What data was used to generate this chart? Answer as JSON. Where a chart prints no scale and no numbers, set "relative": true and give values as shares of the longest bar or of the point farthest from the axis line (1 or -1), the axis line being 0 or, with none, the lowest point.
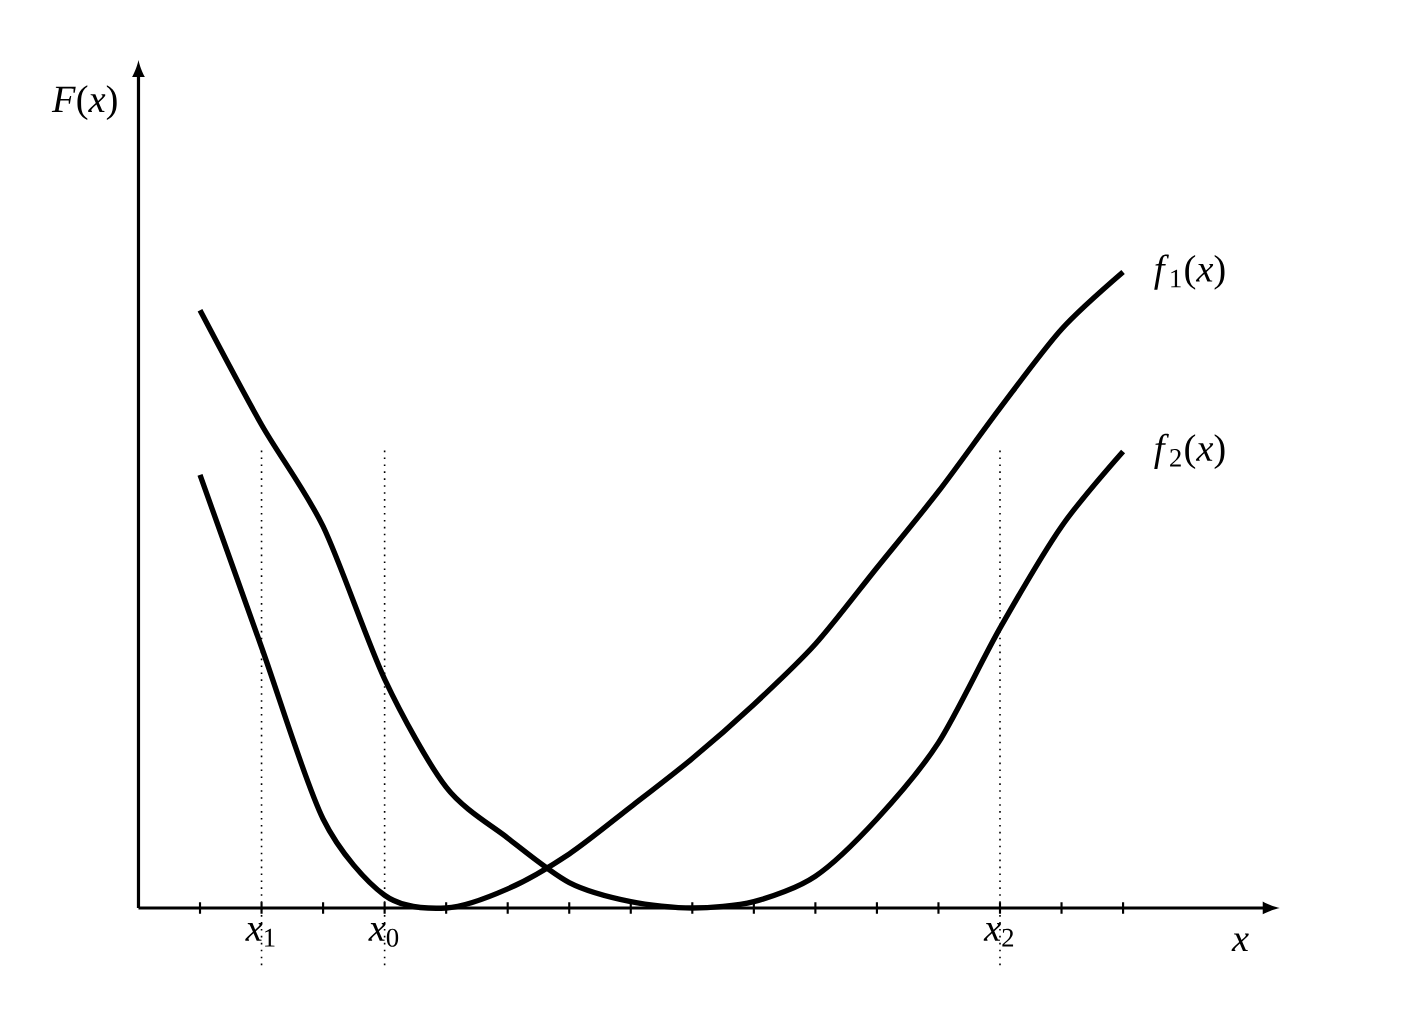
{
  "chart_data": {
    "type": "line",
    "relative": true,
    "ylabel": "*F*(*x*)",
    "xlabel": "x",
    "categories": [
      null,
      "*x*$_{1}$",
      null,
      "*x*$_{0}$",
      null,
      null,
      null,
      null,
      null,
      null,
      null,
      null,
      null,
      "*x*$_{2}$",
      null,
      null
    ],
    "grid": false,
    "marker": "none",
    "line_style": "solid",
    "ref_lines": [
      {
        "axis": "x",
        "value": "*x*$_{1}$",
        "color": "#000000",
        "line_style": "dotted"
      },
      {
        "axis": "x",
        "value": "*x*$_{0}$",
        "color": "#000000",
        "line_style": "dotted"
      },
      {
        "axis": "x",
        "value": "*x*$_{2}$",
        "color": "#000000",
        "line_style": "dotted"
      }
    ],
    "series": [
      {
        "name": "*f*$_{1}$(*x*)",
        "color": "#000000",
        "values": [
          0.681,
          0.41,
          0.14,
          0.02,
          0,
          0.03,
          0.085,
          0.159,
          0.235,
          0.32,
          0.415,
          0.535,
          0.655,
          0.786,
          0.91,
          1
        ]
      },
      {
        "name": "*f*$_{2}$(*x*)",
        "color": "#000000",
        "values": [
          0.94,
          0.76,
          0.6,
          0.36,
          0.19,
          0.11,
          0.04,
          0.01,
          0,
          0.01,
          0.05,
          0.14,
          0.26,
          0.44,
          0.6,
          0.718
        ]
      }
    ]
  }
}
